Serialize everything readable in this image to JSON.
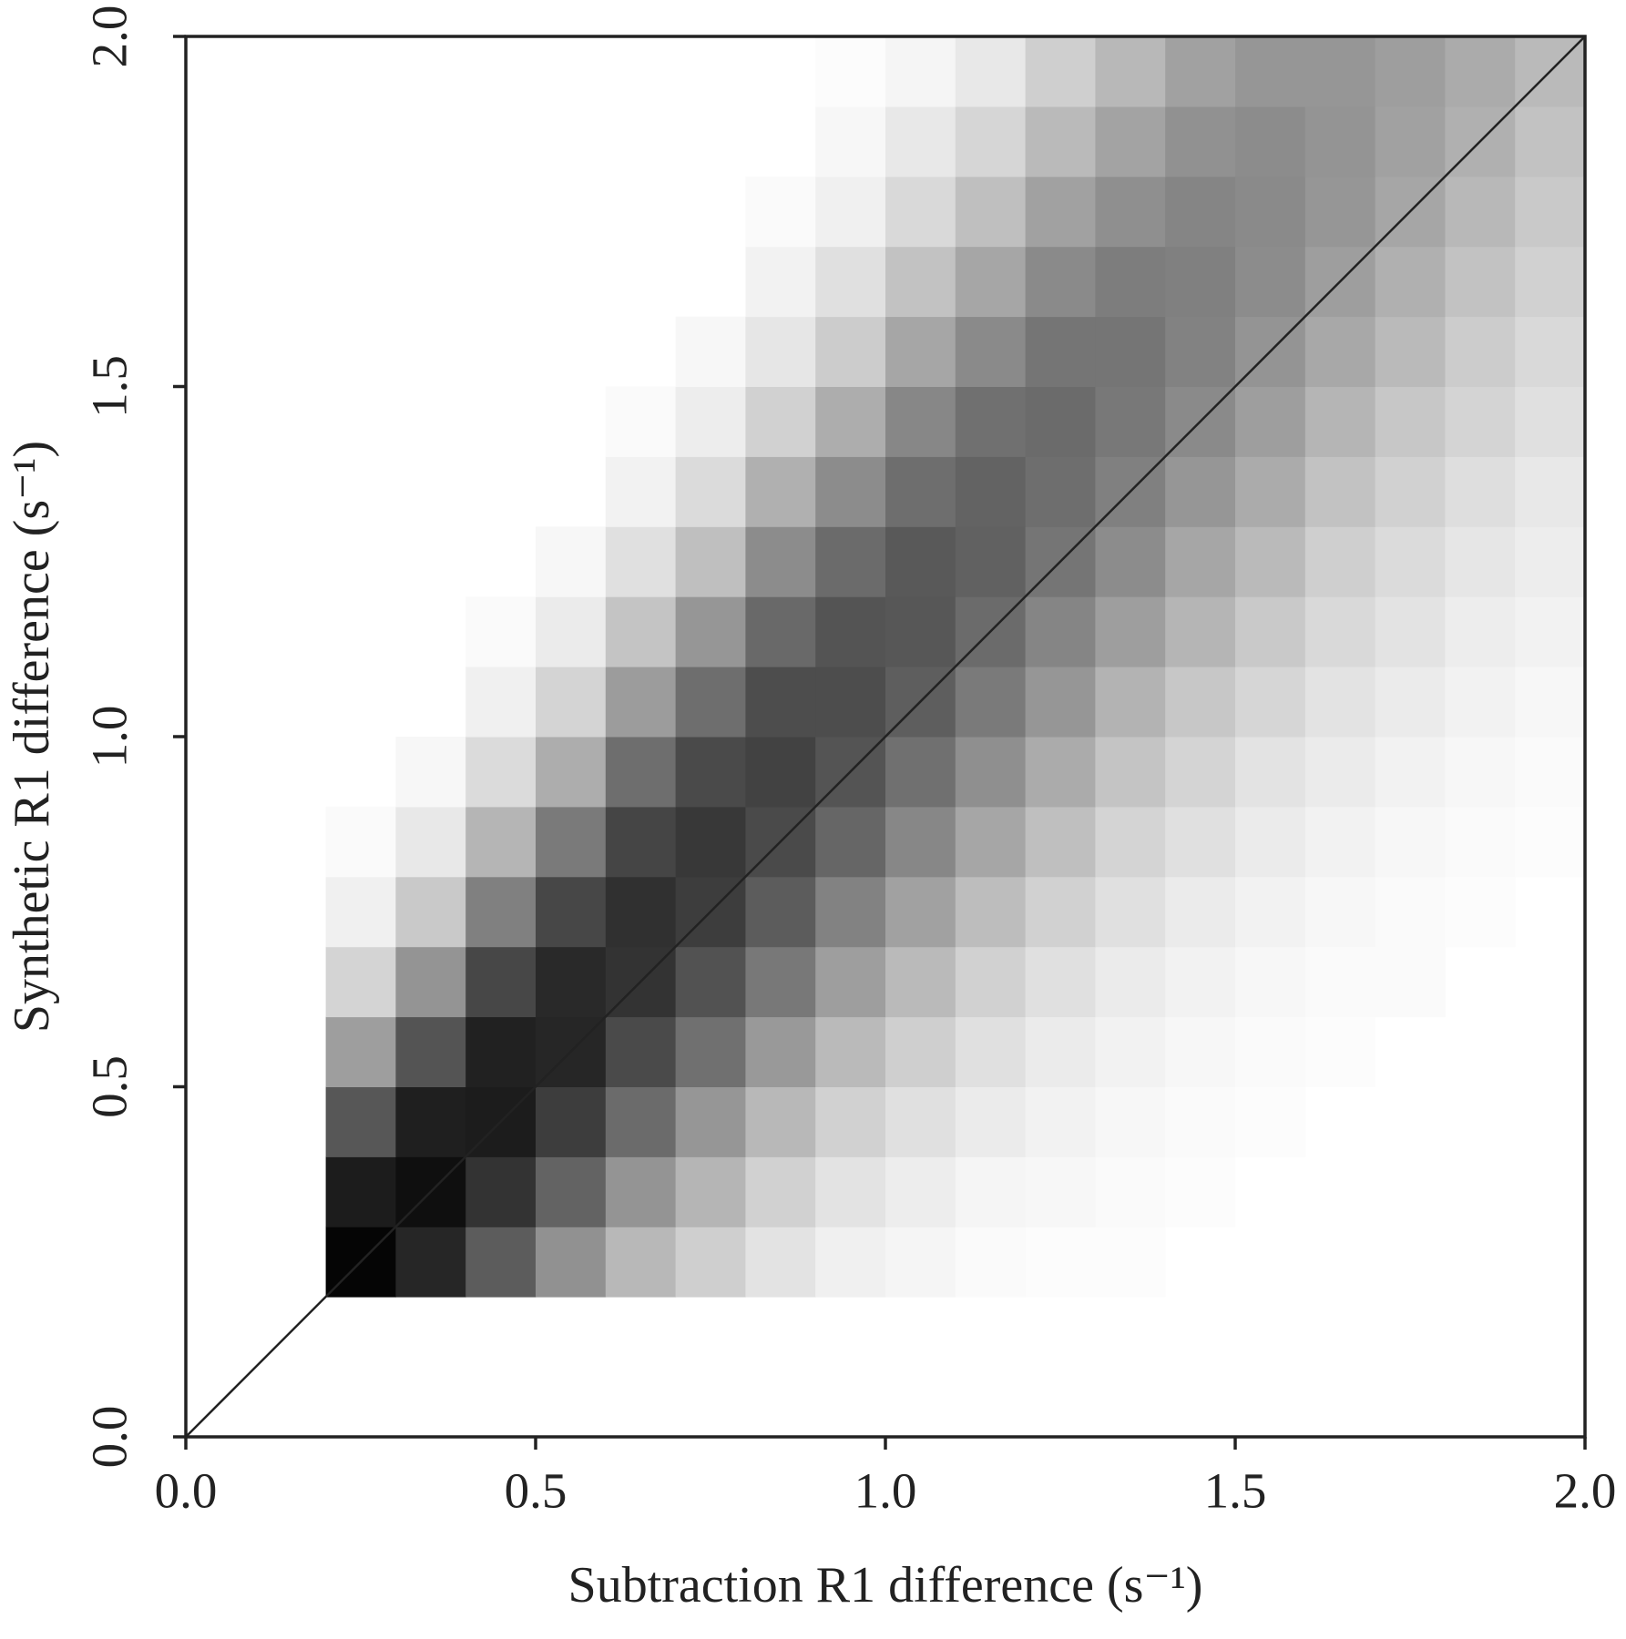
{
  "chart_data": {
    "type": "heatmap",
    "x_label": "Subtraction R1 difference (s⁻¹)",
    "y_label": "Synthetic R1 difference (s⁻¹)",
    "xlim": [
      0,
      2
    ],
    "ylim": [
      0,
      2
    ],
    "xticks": [
      {
        "value": 0,
        "label": "0.0"
      },
      0.5,
      {
        "value": 1,
        "label": "1.0"
      },
      1.5,
      {
        "value": 2,
        "label": "2.0"
      }
    ],
    "yticks": [
      {
        "value": 0,
        "label": "0.0"
      },
      0.5,
      {
        "value": 1,
        "label": "1.0"
      },
      1.5,
      {
        "value": 2,
        "label": "2.0"
      }
    ],
    "x_bins": [
      0.2,
      0.3,
      0.4,
      0.5,
      0.6,
      0.7,
      0.8,
      0.9,
      1.0,
      1.1,
      1.2,
      1.3,
      1.4,
      1.5,
      1.6,
      1.7,
      1.8,
      1.9,
      2.0
    ],
    "y_bins": [
      0.2,
      0.3,
      0.4,
      0.5,
      0.6,
      0.7,
      0.8,
      0.9,
      1.0,
      1.1,
      1.2,
      1.3,
      1.4,
      1.5,
      1.6,
      1.7,
      1.8,
      1.9,
      2.0
    ],
    "zlim": [
      0,
      100
    ],
    "colormap": [
      "#ffffff",
      "#000000"
    ],
    "z": [
      [
        98,
        85,
        64,
        43,
        28,
        19,
        11,
        6,
        4,
        2,
        1,
        1,
        0,
        0,
        0,
        0,
        0,
        0
      ],
      [
        89,
        94,
        80,
        61,
        42,
        29,
        18,
        11,
        7,
        4,
        3,
        2,
        1,
        0,
        0,
        0,
        0,
        0
      ],
      [
        66,
        88,
        89,
        76,
        58,
        41,
        28,
        18,
        12,
        8,
        5,
        3,
        2,
        1,
        0,
        0,
        0,
        0
      ],
      [
        38,
        67,
        87,
        85,
        71,
        56,
        40,
        27,
        19,
        12,
        8,
        5,
        3,
        2,
        1,
        0,
        0,
        0
      ],
      [
        17,
        42,
        72,
        84,
        80,
        68,
        53,
        38,
        27,
        18,
        12,
        8,
        5,
        3,
        2,
        2,
        0,
        0
      ],
      [
        6,
        21,
        50,
        72,
        81,
        76,
        64,
        49,
        37,
        26,
        18,
        12,
        8,
        5,
        3,
        2,
        1,
        0
      ],
      [
        2,
        9,
        29,
        52,
        73,
        78,
        71,
        60,
        47,
        35,
        25,
        17,
        12,
        8,
        5,
        3,
        2,
        1
      ],
      [
        0,
        3,
        14,
        32,
        57,
        71,
        74,
        67,
        56,
        44,
        33,
        23,
        17,
        11,
        8,
        5,
        3,
        2
      ],
      [
        0,
        0,
        6,
        17,
        39,
        57,
        70,
        70,
        63,
        52,
        41,
        30,
        22,
        16,
        11,
        8,
        5,
        3
      ],
      [
        0,
        0,
        2,
        8,
        23,
        41,
        59,
        67,
        66,
        58,
        48,
        38,
        29,
        21,
        15,
        11,
        7,
        5
      ],
      [
        0,
        0,
        0,
        3,
        12,
        25,
        45,
        58,
        65,
        62,
        54,
        45,
        35,
        27,
        19,
        14,
        10,
        7
      ],
      [
        0,
        0,
        0,
        0,
        5,
        14,
        31,
        45,
        57,
        61,
        57,
        50,
        41,
        33,
        24,
        18,
        13,
        9
      ],
      [
        0,
        0,
        0,
        0,
        2,
        7,
        18,
        32,
        47,
        56,
        58,
        53,
        46,
        38,
        29,
        22,
        17,
        12
      ],
      [
        0,
        0,
        0,
        0,
        0,
        3,
        10,
        20,
        35,
        46,
        54,
        54,
        49,
        42,
        34,
        27,
        20,
        15
      ],
      [
        0,
        0,
        0,
        0,
        0,
        0,
        5,
        12,
        24,
        35,
        46,
        51,
        50,
        45,
        38,
        31,
        24,
        18
      ],
      [
        0,
        0,
        0,
        0,
        0,
        0,
        2,
        6,
        15,
        25,
        37,
        44,
        48,
        46,
        41,
        35,
        28,
        21
      ],
      [
        0,
        0,
        0,
        0,
        0,
        0,
        0,
        3,
        9,
        16,
        27,
        36,
        43,
        45,
        42,
        37,
        31,
        24
      ],
      [
        0,
        0,
        0,
        0,
        0,
        0,
        0,
        1,
        4,
        9,
        19,
        28,
        37,
        41,
        41,
        38,
        33,
        27
      ]
    ],
    "reference_line": {
      "x": [
        0,
        2
      ],
      "y": [
        0,
        2
      ],
      "color": "#222222"
    }
  }
}
